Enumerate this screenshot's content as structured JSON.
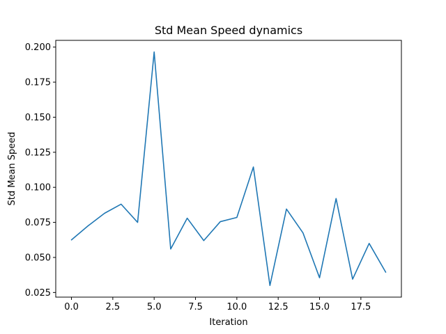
{
  "chart_data": {
    "type": "line",
    "title": "Std Mean Speed dynamics",
    "xlabel": "Iteration",
    "ylabel": "Std Mean Speed",
    "x": [
      0,
      1,
      2,
      3,
      4,
      5,
      6,
      7,
      8,
      9,
      10,
      11,
      12,
      13,
      14,
      15,
      16,
      17,
      18,
      19
    ],
    "series": [
      {
        "values": [
          0.0625,
          0.0725,
          0.0815,
          0.088,
          0.075,
          0.1965,
          0.056,
          0.078,
          0.062,
          0.0755,
          0.0785,
          0.1145,
          0.03,
          0.0845,
          0.0675,
          0.0355,
          0.092,
          0.0345,
          0.06,
          0.0395
        ],
        "color": "#1f77b4"
      }
    ],
    "xlim": [
      -0.95,
      19.95
    ],
    "ylim": [
      0.0217,
      0.2048
    ],
    "xticks": [
      0.0,
      2.5,
      5.0,
      7.5,
      10.0,
      12.5,
      15.0,
      17.5
    ],
    "xtick_labels": [
      "0.0",
      "2.5",
      "5.0",
      "7.5",
      "10.0",
      "12.5",
      "15.0",
      "17.5"
    ],
    "yticks": [
      0.025,
      0.05,
      0.075,
      0.1,
      0.125,
      0.15,
      0.175,
      0.2
    ],
    "ytick_labels": [
      "0.025",
      "0.050",
      "0.075",
      "0.100",
      "0.125",
      "0.150",
      "0.175",
      "0.200"
    ],
    "grid": false,
    "legend": "none"
  }
}
